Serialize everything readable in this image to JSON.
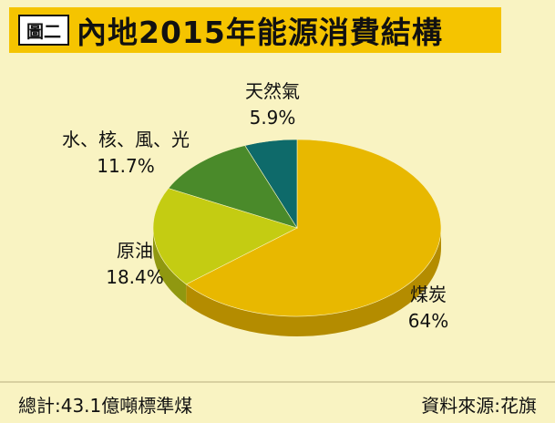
{
  "header": {
    "badge": "圖二",
    "title": "內地2015年能源消費結構"
  },
  "footer": {
    "total": "總計:43.1億噸標準煤",
    "source": "資料來源:花旗"
  },
  "colors": {
    "background": "#f9f3c2",
    "title_bar": "#f5c400"
  },
  "chart_data": {
    "type": "pie",
    "title": "內地2015年能源消費結構",
    "slices": [
      {
        "name": "煤炭",
        "value": 64,
        "label": "64%",
        "color": "#e8b800",
        "side": "#b48c00"
      },
      {
        "name": "原油",
        "value": 18.4,
        "label": "18.4%",
        "color": "#c4cc12",
        "side": "#909810"
      },
      {
        "name": "水、核、風、光",
        "value": 11.7,
        "label": "11.7%",
        "color": "#4a8a2a",
        "side": "#356a1c"
      },
      {
        "name": "天然氣",
        "value": 5.9,
        "label": "5.9%",
        "color": "#0e6a6a",
        "side": "#0a4c4c"
      }
    ]
  }
}
